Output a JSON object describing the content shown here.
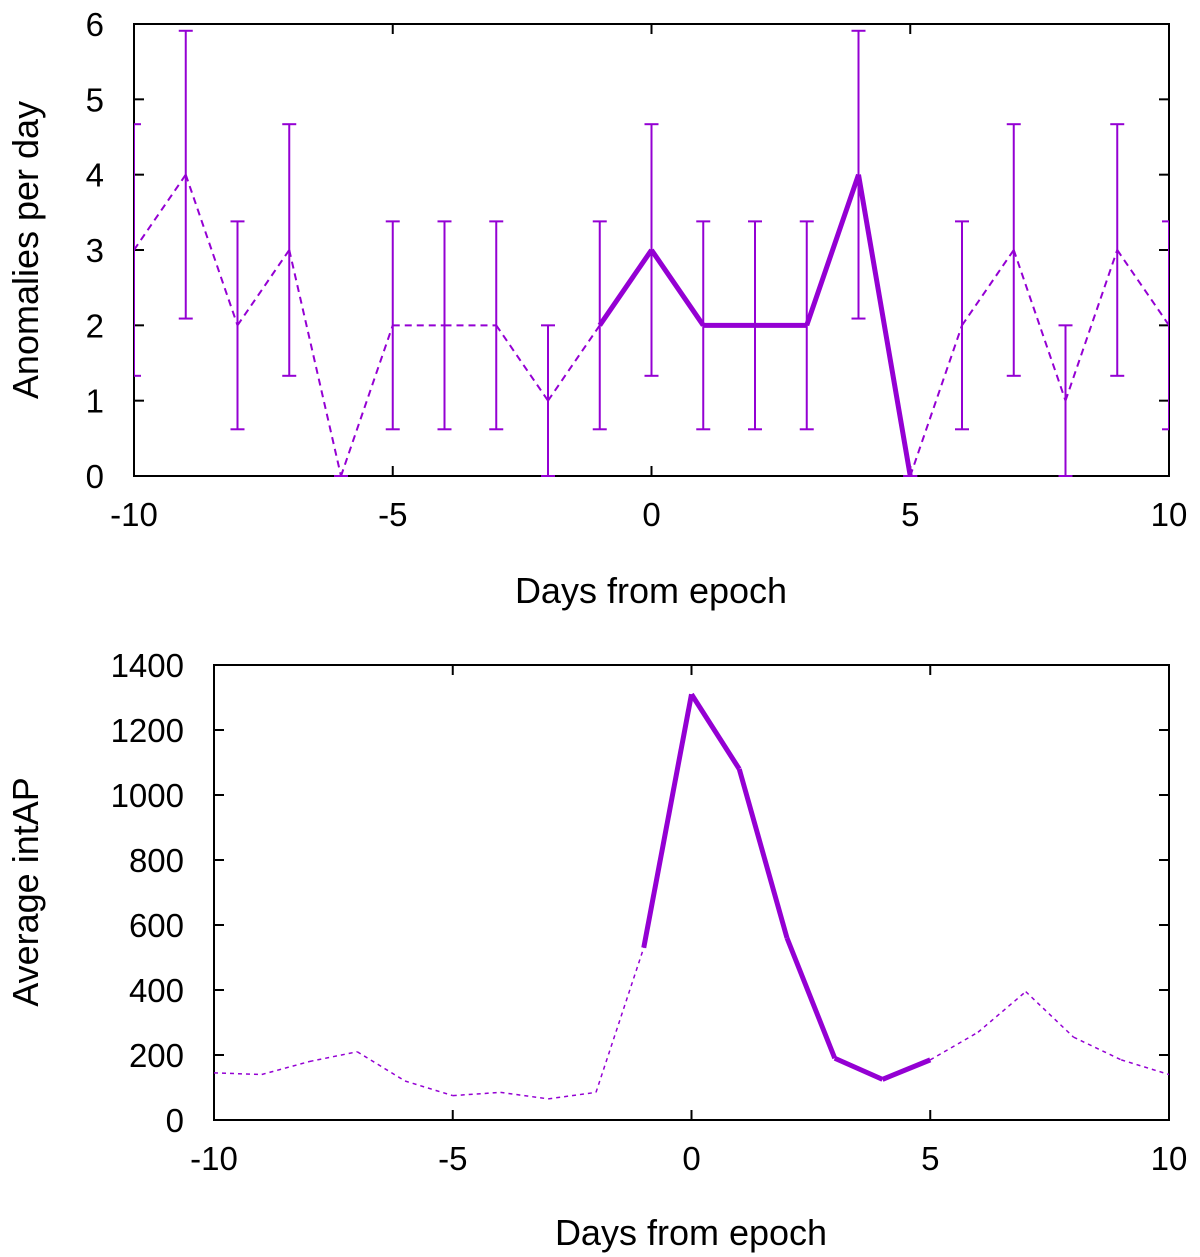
{
  "chart_data": [
    {
      "type": "line",
      "xlabel": "Days from epoch",
      "ylabel": "Anomalies per day",
      "xlim": [
        -10,
        10
      ],
      "ylim": [
        0,
        6
      ],
      "xticks": [
        -10,
        -5,
        0,
        5,
        10
      ],
      "xtick_labels": [
        "-10",
        "-5",
        "0",
        "5",
        "10"
      ],
      "yticks": [
        0,
        1,
        2,
        3,
        4,
        5,
        6
      ],
      "ytick_labels": [
        "0",
        "1",
        "2",
        "3",
        "4",
        "5",
        "6"
      ],
      "x": [
        -10,
        -9,
        -8,
        -7,
        -6,
        -5,
        -4,
        -3,
        -2,
        -1,
        0,
        1,
        2,
        3,
        4,
        5,
        6,
        7,
        8,
        9,
        10
      ],
      "values": [
        3,
        4,
        2,
        3,
        0,
        2,
        2,
        2,
        1,
        2,
        3,
        2,
        2,
        2,
        4,
        0,
        2,
        3,
        1,
        3,
        2
      ],
      "error_low": [
        1.33,
        2.09,
        0.62,
        1.33,
        0,
        0.62,
        0.62,
        0.62,
        0,
        0.62,
        1.33,
        0.62,
        0.62,
        0.62,
        2.09,
        0,
        0.62,
        1.33,
        0,
        1.33,
        0.62
      ],
      "error_high": [
        4.67,
        5.91,
        3.38,
        4.67,
        0,
        3.38,
        3.38,
        3.38,
        2,
        3.38,
        4.67,
        3.38,
        3.38,
        3.38,
        5.91,
        0,
        3.38,
        4.67,
        2,
        4.67,
        3.38
      ],
      "highlight_range": [
        -1,
        5
      ],
      "color": "#9400d3"
    },
    {
      "type": "line",
      "xlabel": "Days from epoch",
      "ylabel": "Average intAP",
      "xlim": [
        -10,
        10
      ],
      "ylim": [
        0,
        1400
      ],
      "xticks": [
        -10,
        -5,
        0,
        5,
        10
      ],
      "xtick_labels": [
        "-10",
        "-5",
        "0",
        "5",
        "10"
      ],
      "yticks": [
        0,
        200,
        400,
        600,
        800,
        1000,
        1200,
        1400
      ],
      "ytick_labels": [
        "0",
        "200",
        "400",
        "600",
        "800",
        "1000",
        "1200",
        "1400"
      ],
      "x": [
        -10,
        -9,
        -8,
        -7,
        -6,
        -5,
        -4,
        -3,
        -2,
        -1,
        0,
        1,
        2,
        3,
        4,
        5,
        6,
        7,
        8,
        9,
        10
      ],
      "values": [
        145,
        140,
        180,
        210,
        120,
        75,
        85,
        65,
        85,
        530,
        1310,
        1080,
        560,
        190,
        125,
        185,
        270,
        395,
        255,
        185,
        140
      ],
      "highlight_range": [
        -1,
        5
      ],
      "color": "#9400d3"
    }
  ]
}
